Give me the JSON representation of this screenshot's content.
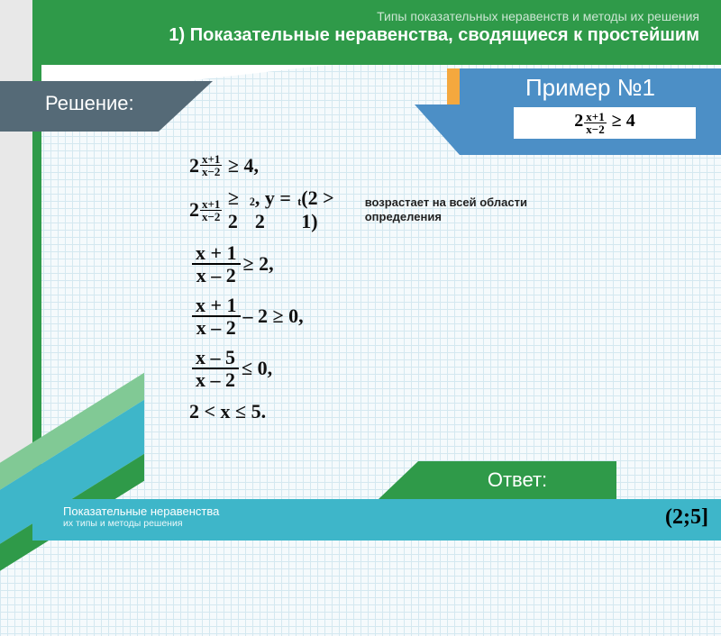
{
  "header": {
    "subtitle": "Типы показательных неравенств и методы их решения",
    "title": "1) Показательные неравенства, сводящиеся к простейшим"
  },
  "solution_label": "Решение:",
  "example": {
    "title": "Пример №1",
    "exp_num": "x+1",
    "exp_den": "x−2",
    "base": "2",
    "relation": "≥ 4"
  },
  "steps": {
    "s1": {
      "base": "2",
      "exp_num": "x+1",
      "exp_den": "x−2",
      "rhs": "≥ 4,"
    },
    "s2": {
      "base": "2",
      "exp_num": "x+1",
      "exp_den": "x−2",
      "mid": "≥ 2",
      "exp2": "2",
      "yfun": ",  y = 2",
      "tpar": "t",
      "paren": "(2 > 1)"
    },
    "note": "возрастает на всей области определения",
    "s3": {
      "num": "x + 1",
      "den": "x – 2",
      "rhs": " ≥ 2,"
    },
    "s4": {
      "num": "x + 1",
      "den": "x – 2",
      "rhs": " – 2 ≥ 0,"
    },
    "s5": {
      "num": "x – 5",
      "den": "x – 2",
      "rhs": " ≤ 0,"
    },
    "s6": "2 < x ≤ 5."
  },
  "answer": {
    "label": "Ответ:",
    "value": "(2;5]"
  },
  "footer": {
    "line1": "Показательные неравенства",
    "line2": "их типы и методы решения"
  },
  "colors": {
    "green": "#2f9a49",
    "teal": "#3eb6c9",
    "blue": "#4c8fc6",
    "orange": "#f4a83e",
    "grey": "#e8e8e8",
    "slate": "#556a77"
  }
}
